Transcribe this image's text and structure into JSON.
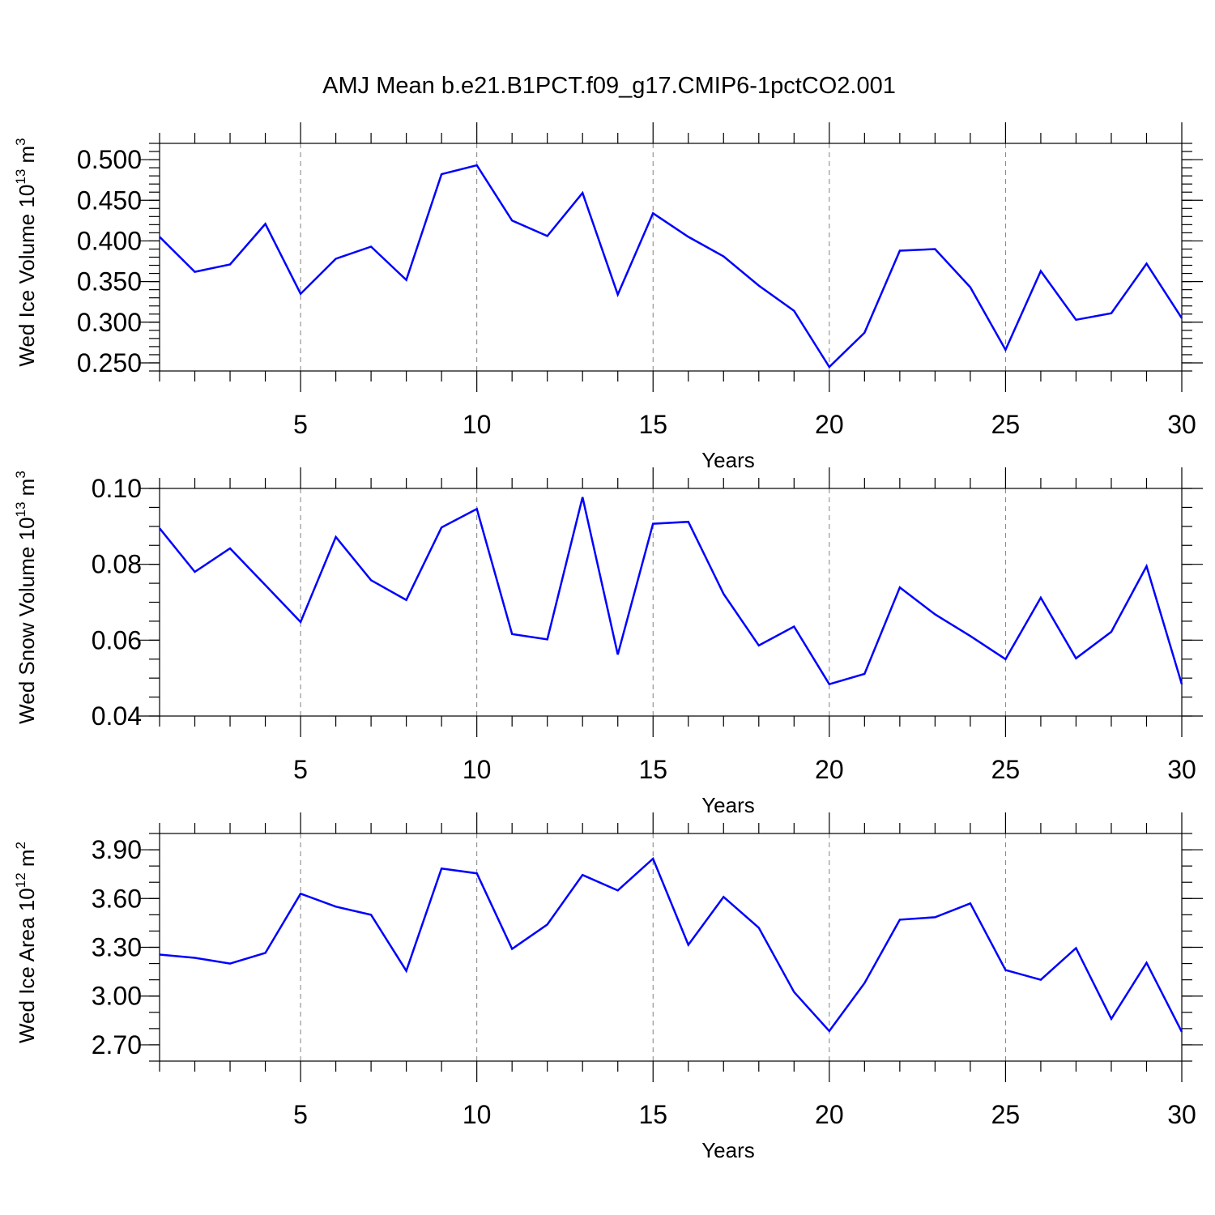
{
  "title": "AMJ Mean b.e21.B1PCT.f09_g17.CMIP6-1pctCO2.001",
  "colors": {
    "line": "#0000ff",
    "axis": "#000000",
    "grid": "#808080",
    "background": "#ffffff"
  },
  "chart_data": [
    {
      "type": "line",
      "xlabel": "Years",
      "ylabel": {
        "text": "Wed Ice Volume 10",
        "exp": "13",
        "unit": " m",
        "unit_exp": "3"
      },
      "xlim": [
        1,
        30
      ],
      "ylim": [
        0.24,
        0.52
      ],
      "xticks": [
        "5",
        "10",
        "15",
        "20",
        "25",
        "30"
      ],
      "yticks": [
        "0.250",
        "0.300",
        "0.350",
        "0.400",
        "0.450",
        "0.500"
      ],
      "grid": "vertical dashed at major x ticks",
      "x": [
        1,
        2,
        3,
        4,
        5,
        6,
        7,
        8,
        9,
        10,
        11,
        12,
        13,
        14,
        15,
        16,
        17,
        18,
        19,
        20,
        21,
        22,
        23,
        24,
        25,
        26,
        27,
        28,
        29,
        30
      ],
      "values": [
        0.405,
        0.362,
        0.371,
        0.421,
        0.335,
        0.378,
        0.393,
        0.352,
        0.482,
        0.493,
        0.425,
        0.406,
        0.459,
        0.334,
        0.434,
        0.405,
        0.381,
        0.345,
        0.314,
        0.245,
        0.287,
        0.388,
        0.39,
        0.343,
        0.266,
        0.363,
        0.303,
        0.311,
        0.372,
        0.305
      ]
    },
    {
      "type": "line",
      "xlabel": "Years",
      "ylabel": {
        "text": "Wed Snow Volume 10",
        "exp": "13",
        "unit": " m",
        "unit_exp": "3"
      },
      "xlim": [
        1,
        30
      ],
      "ylim": [
        0.04,
        0.1
      ],
      "xticks": [
        "5",
        "10",
        "15",
        "20",
        "25",
        "30"
      ],
      "yticks": [
        "0.04",
        "0.06",
        "0.08",
        "0.10"
      ],
      "grid": "vertical dashed at major x ticks",
      "x": [
        1,
        2,
        3,
        4,
        5,
        6,
        7,
        8,
        9,
        10,
        11,
        12,
        13,
        14,
        15,
        16,
        17,
        18,
        19,
        20,
        21,
        22,
        23,
        24,
        25,
        26,
        27,
        28,
        29,
        30
      ],
      "values": [
        0.0895,
        0.078,
        0.0842,
        0.0745,
        0.0648,
        0.0872,
        0.0758,
        0.0706,
        0.0897,
        0.0946,
        0.0616,
        0.0602,
        0.0977,
        0.0562,
        0.0907,
        0.0912,
        0.0722,
        0.0586,
        0.0636,
        0.0484,
        0.0511,
        0.0739,
        0.0668,
        0.0611,
        0.055,
        0.0712,
        0.0552,
        0.0622,
        0.0795,
        0.0484
      ]
    },
    {
      "type": "line",
      "xlabel": "Years",
      "ylabel": {
        "text": "Wed Ice Area 10",
        "exp": "12",
        "unit": " m",
        "unit_exp": "2"
      },
      "xlim": [
        1,
        30
      ],
      "ylim": [
        2.6,
        4.0
      ],
      "xticks": [
        "5",
        "10",
        "15",
        "20",
        "25",
        "30"
      ],
      "yticks": [
        "2.70",
        "3.00",
        "3.30",
        "3.60",
        "3.90"
      ],
      "grid": "vertical dashed at major x ticks",
      "x": [
        1,
        2,
        3,
        4,
        5,
        6,
        7,
        8,
        9,
        10,
        11,
        12,
        13,
        14,
        15,
        16,
        17,
        18,
        19,
        20,
        21,
        22,
        23,
        24,
        25,
        26,
        27,
        28,
        29,
        30
      ],
      "values": [
        3.255,
        3.235,
        3.2,
        3.265,
        3.63,
        3.55,
        3.5,
        3.155,
        3.785,
        3.755,
        3.29,
        3.44,
        3.745,
        3.65,
        3.845,
        3.315,
        3.61,
        3.42,
        3.025,
        2.785,
        3.08,
        3.47,
        3.485,
        3.57,
        3.16,
        3.1,
        3.295,
        2.86,
        3.205,
        2.78
      ]
    }
  ]
}
